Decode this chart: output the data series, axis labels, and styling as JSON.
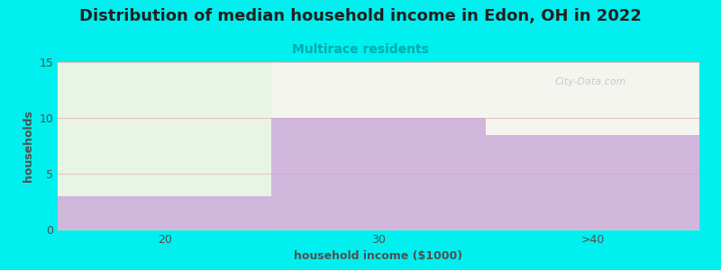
{
  "title": "Distribution of median household income in Edon, OH in 2022",
  "subtitle": "Multirace residents",
  "xlabel": "household income ($1000)",
  "ylabel": "households",
  "categories": [
    "20",
    "30",
    ">40"
  ],
  "values": [
    3,
    10,
    8.5
  ],
  "bar_color": "#c8a8d8",
  "first_bar_bg_color": "#e8f5e4",
  "plot_bg_color": "#f5f5f0",
  "fig_bg_color": "#00efef",
  "ylim": [
    0,
    15
  ],
  "yticks": [
    0,
    5,
    10,
    15
  ],
  "grid_color": "#e8c0c0",
  "title_color": "#202020",
  "subtitle_color": "#00aaaa",
  "axis_label_color": "#505050",
  "tick_label_color": "#505050",
  "watermark_text": "City-Data.com",
  "watermark_color": "#c0c0c8",
  "title_fontsize": 13,
  "subtitle_fontsize": 10,
  "label_fontsize": 9,
  "tick_fontsize": 9
}
